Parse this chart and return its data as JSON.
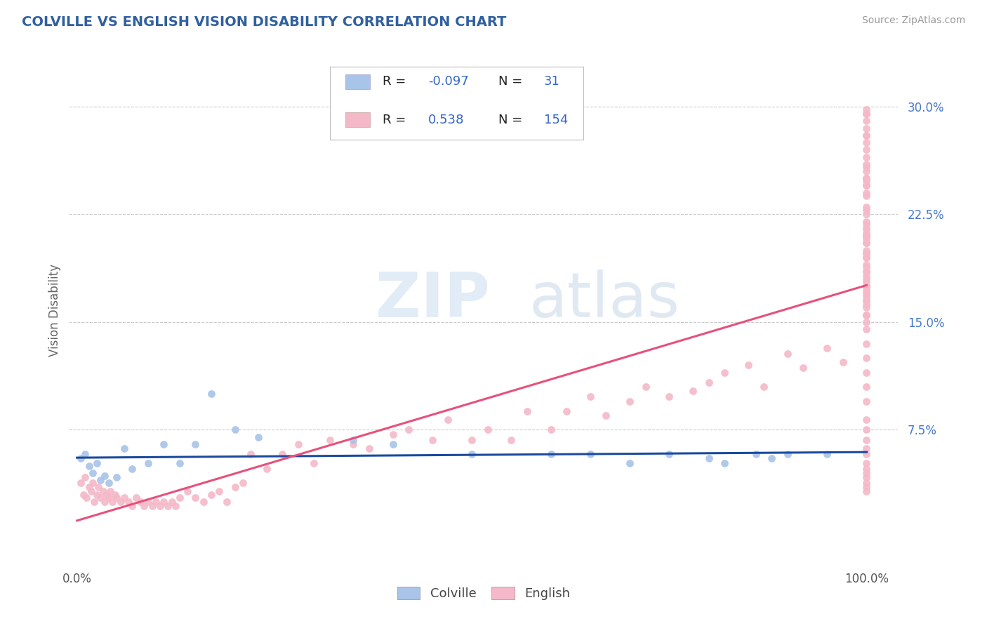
{
  "title": "COLVILLE VS ENGLISH VISION DISABILITY CORRELATION CHART",
  "source": "Source: ZipAtlas.com",
  "xlabel_colville": "Colville",
  "xlabel_english": "English",
  "ylabel": "Vision Disability",
  "xtick_labels": [
    "0.0%",
    "100.0%"
  ],
  "ytick_labels": [
    "7.5%",
    "15.0%",
    "22.5%",
    "30.0%"
  ],
  "ytick_values": [
    0.075,
    0.15,
    0.225,
    0.3
  ],
  "R_colville": -0.097,
  "N_colville": 31,
  "R_english": 0.538,
  "N_english": 154,
  "colville_color": "#a8c4e8",
  "english_color": "#f4b8c8",
  "colville_line_color": "#1a4a9f",
  "english_line_color": "#e8507a",
  "watermark_zip": "ZIP",
  "watermark_atlas": "atlas",
  "title_color": "#3060a0",
  "legend_R_label": "R =",
  "legend_N_label": "N =",
  "legend_R1": "-0.097",
  "legend_N1": "31",
  "legend_R2": "0.538",
  "legend_N2": "154",
  "colville_scatter_x": [
    0.005,
    0.01,
    0.015,
    0.02,
    0.025,
    0.03,
    0.035,
    0.04,
    0.05,
    0.06,
    0.07,
    0.09,
    0.11,
    0.13,
    0.15,
    0.17,
    0.2,
    0.23,
    0.35,
    0.4,
    0.5,
    0.6,
    0.65,
    0.7,
    0.75,
    0.8,
    0.82,
    0.86,
    0.88,
    0.9,
    0.95
  ],
  "colville_scatter_y": [
    0.055,
    0.058,
    0.05,
    0.045,
    0.052,
    0.04,
    0.043,
    0.038,
    0.042,
    0.062,
    0.048,
    0.052,
    0.065,
    0.052,
    0.065,
    0.1,
    0.075,
    0.07,
    0.068,
    0.065,
    0.058,
    0.058,
    0.058,
    0.052,
    0.058,
    0.055,
    0.052,
    0.058,
    0.055,
    0.058,
    0.058
  ],
  "english_scatter_x": [
    0.005,
    0.008,
    0.01,
    0.012,
    0.015,
    0.018,
    0.02,
    0.022,
    0.025,
    0.027,
    0.03,
    0.033,
    0.035,
    0.038,
    0.04,
    0.042,
    0.045,
    0.048,
    0.05,
    0.055,
    0.06,
    0.065,
    0.07,
    0.075,
    0.08,
    0.085,
    0.09,
    0.095,
    0.1,
    0.105,
    0.11,
    0.115,
    0.12,
    0.125,
    0.13,
    0.14,
    0.15,
    0.16,
    0.17,
    0.18,
    0.19,
    0.2,
    0.21,
    0.22,
    0.24,
    0.26,
    0.28,
    0.3,
    0.32,
    0.35,
    0.37,
    0.4,
    0.42,
    0.45,
    0.47,
    0.5,
    0.52,
    0.55,
    0.57,
    0.6,
    0.62,
    0.65,
    0.67,
    0.7,
    0.72,
    0.75,
    0.78,
    0.8,
    0.82,
    0.85,
    0.87,
    0.9,
    0.92,
    0.95,
    0.97,
    1.0,
    1.0,
    1.0,
    1.0,
    1.0,
    1.0,
    1.0,
    1.0,
    1.0,
    1.0,
    1.0,
    1.0,
    1.0,
    1.0,
    1.0,
    1.0,
    1.0,
    1.0,
    1.0,
    1.0,
    1.0,
    1.0,
    1.0,
    1.0,
    1.0,
    1.0,
    1.0,
    1.0,
    1.0,
    1.0,
    1.0,
    1.0,
    1.0,
    1.0,
    1.0,
    1.0,
    1.0,
    1.0,
    1.0,
    1.0,
    1.0,
    1.0,
    1.0,
    1.0,
    1.0,
    1.0,
    1.0,
    1.0,
    1.0,
    1.0,
    1.0,
    1.0,
    1.0,
    1.0,
    1.0,
    1.0,
    1.0,
    1.0,
    1.0,
    1.0,
    1.0,
    1.0,
    1.0,
    1.0,
    1.0,
    1.0,
    1.0,
    1.0,
    1.0,
    1.0,
    1.0,
    1.0,
    1.0,
    1.0,
    1.0,
    1.0,
    1.0,
    1.0,
    1.0
  ],
  "english_scatter_y": [
    0.038,
    0.03,
    0.042,
    0.028,
    0.035,
    0.032,
    0.038,
    0.025,
    0.03,
    0.035,
    0.028,
    0.032,
    0.025,
    0.03,
    0.028,
    0.032,
    0.025,
    0.03,
    0.028,
    0.025,
    0.028,
    0.025,
    0.022,
    0.028,
    0.025,
    0.022,
    0.025,
    0.022,
    0.025,
    0.022,
    0.025,
    0.022,
    0.025,
    0.022,
    0.028,
    0.032,
    0.028,
    0.025,
    0.03,
    0.032,
    0.025,
    0.035,
    0.038,
    0.058,
    0.048,
    0.058,
    0.065,
    0.052,
    0.068,
    0.065,
    0.062,
    0.072,
    0.075,
    0.068,
    0.082,
    0.068,
    0.075,
    0.068,
    0.088,
    0.075,
    0.088,
    0.098,
    0.085,
    0.095,
    0.105,
    0.098,
    0.102,
    0.108,
    0.115,
    0.12,
    0.105,
    0.128,
    0.118,
    0.132,
    0.122,
    0.035,
    0.032,
    0.038,
    0.045,
    0.048,
    0.042,
    0.052,
    0.058,
    0.062,
    0.068,
    0.075,
    0.082,
    0.095,
    0.105,
    0.115,
    0.125,
    0.135,
    0.145,
    0.155,
    0.165,
    0.175,
    0.185,
    0.195,
    0.205,
    0.215,
    0.225,
    0.162,
    0.172,
    0.182,
    0.198,
    0.168,
    0.178,
    0.188,
    0.198,
    0.208,
    0.218,
    0.228,
    0.238,
    0.248,
    0.258,
    0.19,
    0.2,
    0.21,
    0.22,
    0.23,
    0.24,
    0.25,
    0.26,
    0.27,
    0.28,
    0.29,
    0.245,
    0.255,
    0.265,
    0.275,
    0.285,
    0.295,
    0.195,
    0.205,
    0.215,
    0.16,
    0.17,
    0.18,
    0.175,
    0.185,
    0.175,
    0.28,
    0.175,
    0.298,
    0.15,
    0.165,
    0.295,
    0.245,
    0.155,
    0.21,
    0.25,
    0.175,
    0.155,
    0.212
  ]
}
